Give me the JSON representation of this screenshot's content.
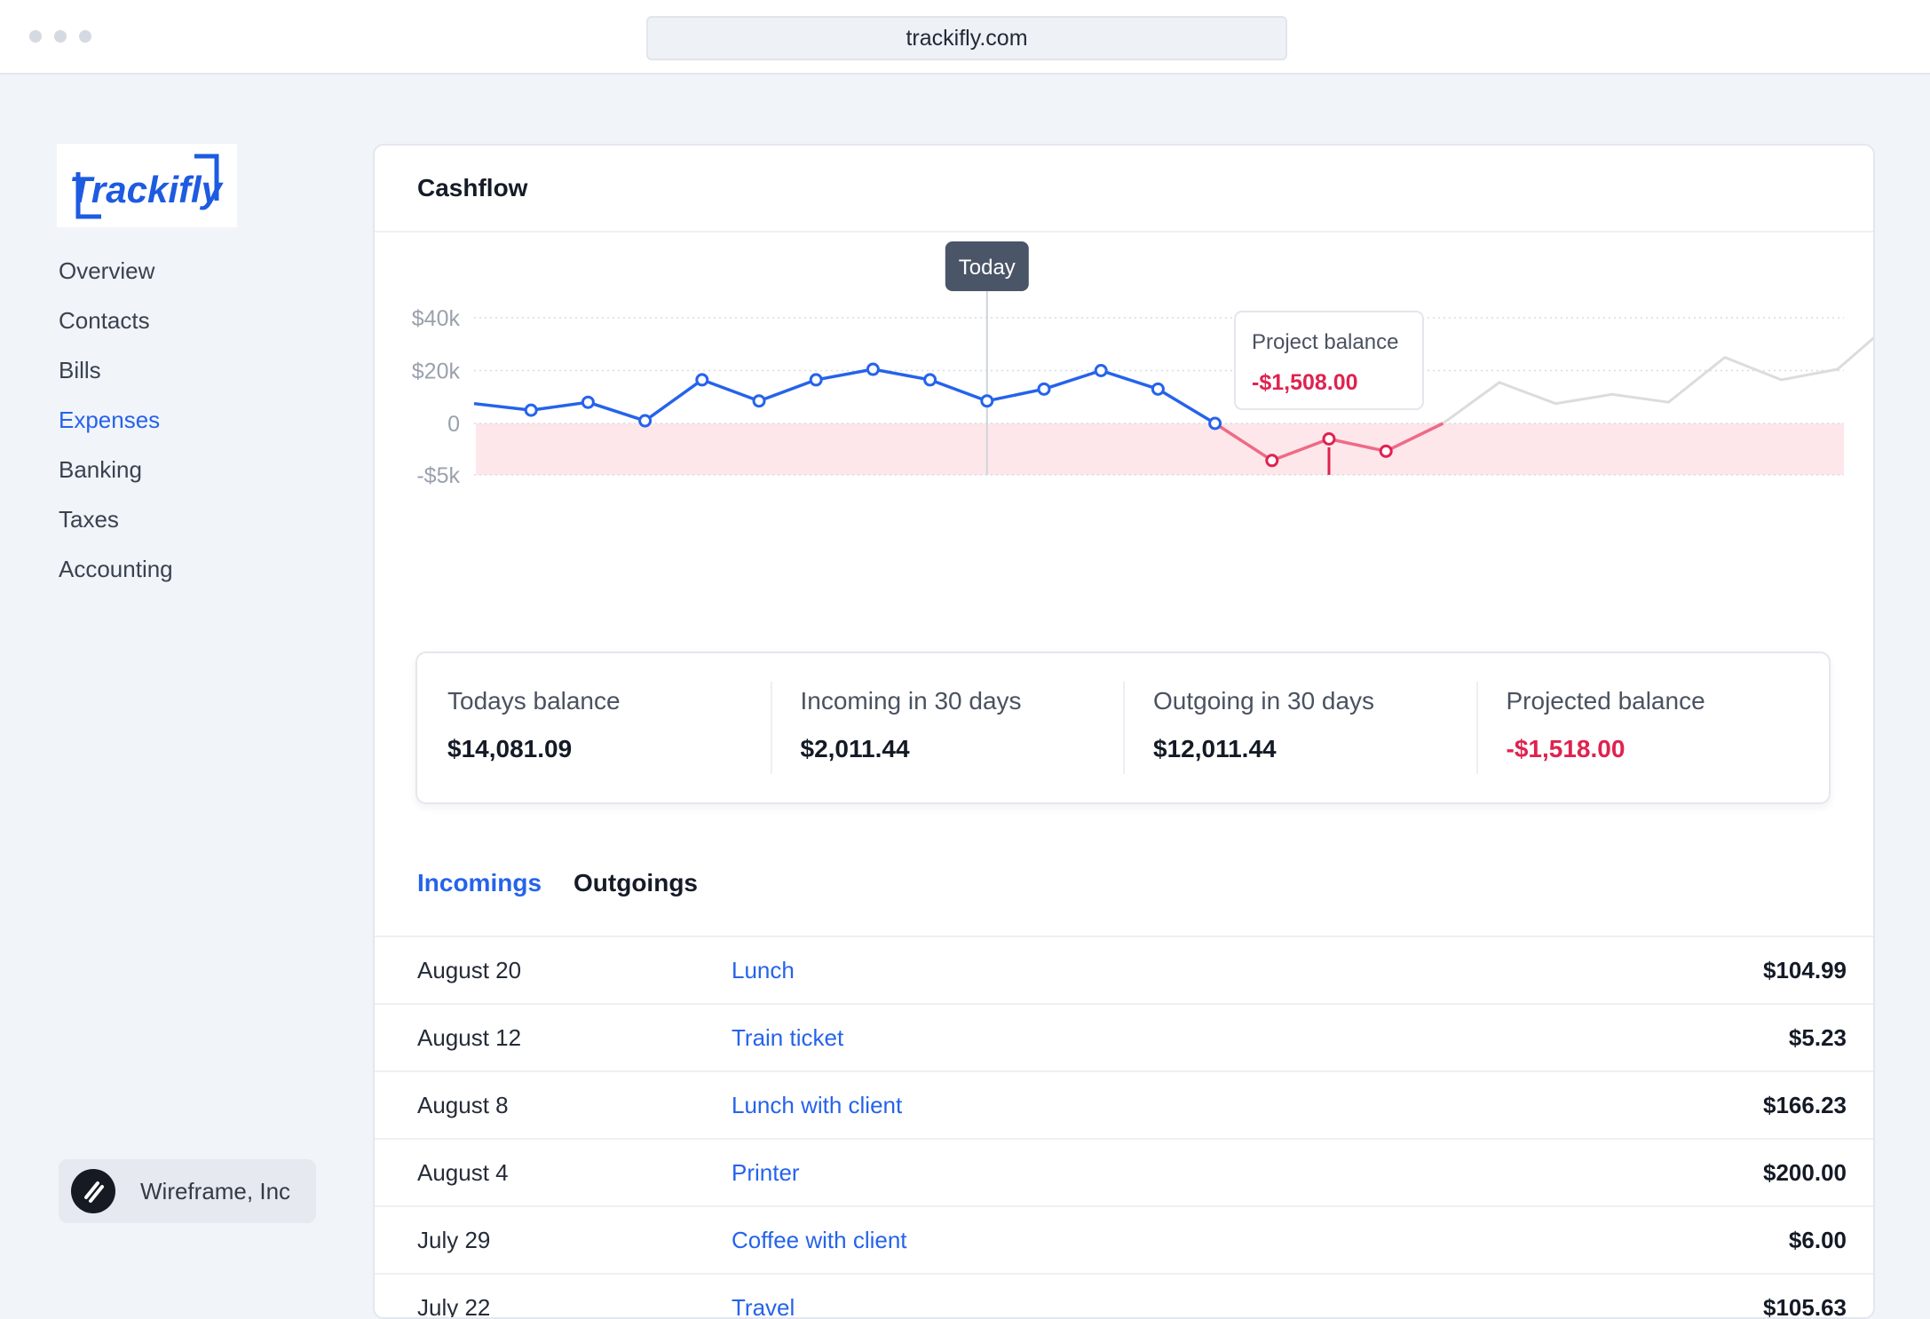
{
  "browser": {
    "url": "trackifly.com"
  },
  "app": {
    "logo_text": "Trackifly"
  },
  "sidebar": {
    "items": [
      {
        "label": "Overview"
      },
      {
        "label": "Contacts"
      },
      {
        "label": "Bills"
      },
      {
        "label": "Expenses",
        "active": true
      },
      {
        "label": "Banking"
      },
      {
        "label": "Taxes"
      },
      {
        "label": "Accounting"
      }
    ],
    "organization": "Wireframe, Inc"
  },
  "card": {
    "title": "Cashflow"
  },
  "chart_data": {
    "type": "line",
    "ytick_labels": [
      "$40k",
      "$20k",
      "0",
      "-$5k"
    ],
    "y_ticks": [
      40000,
      20000,
      0,
      -5000
    ],
    "y_axis_note": "nonlinear axis: 0 to -5k spans same height as 0 to 20k",
    "today_marker_label": "Today",
    "today_index": 9,
    "tooltip": {
      "title": "Project balance",
      "value": "-$1,508.00",
      "index": 15
    },
    "negative_region_shaded": true,
    "actual_series": {
      "name": "Balance",
      "values": [
        7500,
        5000,
        8000,
        1000,
        16500,
        8500,
        16500,
        20500,
        16500,
        8500,
        13000,
        20000,
        13000,
        0,
        -3600,
        -1508,
        -2700,
        0
      ]
    },
    "projected_series": {
      "name": "Projected",
      "start_index": 17,
      "values": [
        0,
        15500,
        7500,
        11000,
        8000,
        25000,
        16500,
        20500,
        39000
      ]
    },
    "colors": {
      "positive": "#2563eb",
      "negative": "#e0224f",
      "negative_fill": "#fde7ea",
      "projection": "#dcdcdc"
    }
  },
  "stats": [
    {
      "label": "Todays balance",
      "value": "$14,081.09",
      "negative": false
    },
    {
      "label": "Incoming in 30 days",
      "value": "$2,011.44",
      "negative": false
    },
    {
      "label": "Outgoing in 30 days",
      "value": "$12,011.44",
      "negative": false
    },
    {
      "label": "Projected balance",
      "value": "-$1,518.00",
      "negative": true
    }
  ],
  "tabs": [
    {
      "label": "Incomings",
      "active": true
    },
    {
      "label": "Outgoings",
      "active": false
    }
  ],
  "transactions": [
    {
      "date": "August 20",
      "description": "Lunch",
      "amount": "$104.99"
    },
    {
      "date": "August 12",
      "description": "Train ticket",
      "amount": "$5.23"
    },
    {
      "date": "August 8",
      "description": "Lunch with client",
      "amount": "$166.23"
    },
    {
      "date": "August 4",
      "description": "Printer",
      "amount": "$200.00"
    },
    {
      "date": "July 29",
      "description": "Coffee with client",
      "amount": "$6.00"
    },
    {
      "date": "July 22",
      "description": "Travel",
      "amount": "$105.63"
    }
  ]
}
